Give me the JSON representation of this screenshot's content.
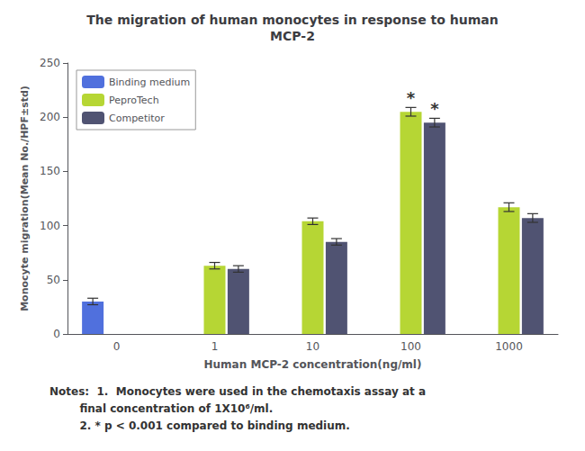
{
  "chart_data": {
    "type": "bar",
    "title": "The migration of human monocytes in response to human\nMCP-2",
    "x_label": "Human MCP-2 concentration(ng/ml)",
    "y_label": "Monocyte migration(Mean No./HPF±std)",
    "categories": [
      "0",
      "1",
      "10",
      "100",
      "1000"
    ],
    "series": [
      {
        "name": "Binding medium",
        "values": [
          30,
          null,
          null,
          null,
          null
        ],
        "errors": [
          3,
          null,
          null,
          null,
          null
        ]
      },
      {
        "name": "PeproTech",
        "values": [
          null,
          63,
          104,
          205,
          117
        ],
        "errors": [
          null,
          3,
          3,
          4,
          4
        ]
      },
      {
        "name": "Competitor",
        "values": [
          null,
          60,
          85,
          195,
          107
        ],
        "errors": [
          null,
          3,
          3,
          4,
          4
        ]
      }
    ],
    "ylim": [
      0,
      250
    ],
    "yticks": [
      0,
      50,
      100,
      150,
      200,
      250
    ],
    "grid": false,
    "legend": "upper left",
    "annotations": [
      {
        "text": "*",
        "series": "PeproTech",
        "category": "100"
      },
      {
        "text": "*",
        "series": "Competitor",
        "category": "100"
      }
    ],
    "notes": [
      "Notes:  1.  Monocytes were used in the chemotaxis assay at a",
      "        final concentration of 1X10⁶/ml.",
      "        2. * p < 0.001 compared to binding medium."
    ]
  }
}
